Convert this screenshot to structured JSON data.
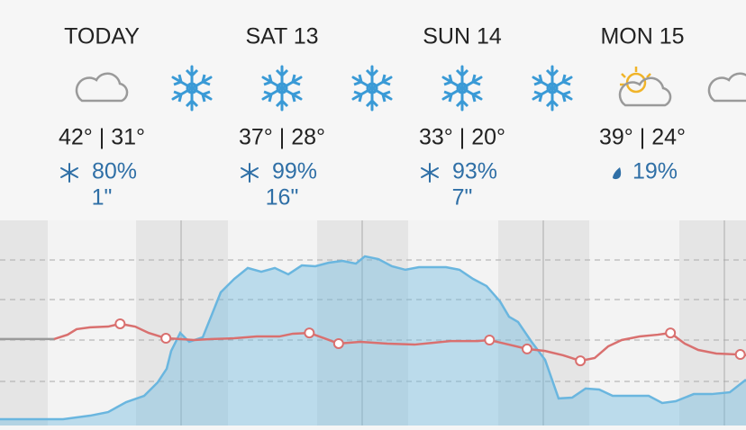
{
  "days": [
    {
      "label": "TODAY",
      "temps": "42° | 31°",
      "precip": "80%",
      "accum": "1\""
    },
    {
      "label": "SAT 13",
      "temps": "37° | 28°",
      "precip": "99%",
      "accum": "16\""
    },
    {
      "label": "SUN 14",
      "temps": "33° | 20°",
      "precip": "93%",
      "accum": "7\""
    },
    {
      "label": "MON 15",
      "temps": "39° | 24°",
      "precip": "19%"
    }
  ],
  "graph": {
    "xlim": [
      0,
      99.36
    ],
    "ylim": [
      0,
      100
    ],
    "precip": {
      "color": "#6ab6df",
      "x": [
        0,
        8.4,
        12,
        14.4,
        16.8,
        19.2,
        21,
        22.2,
        22.8,
        24,
        25.2,
        27,
        28.2,
        29.4,
        31.2,
        33,
        34.8,
        36.6,
        38.4,
        40.2,
        42,
        43.8,
        45.6,
        47.4,
        48.6,
        50.4,
        52.2,
        54,
        55.8,
        57.6,
        59.4,
        61.2,
        63,
        64.8,
        66.6,
        67.8,
        69,
        70.8,
        72.6,
        74.4,
        76.2,
        78,
        79.8,
        81.6,
        84,
        86.4,
        88.2,
        90,
        92.4,
        94.8,
        97.2,
        99.36
      ],
      "values": [
        0,
        0,
        1.8,
        3.6,
        8.6,
        11.8,
        18.6,
        25.5,
        34.5,
        43.6,
        39.1,
        41.4,
        52.7,
        64.1,
        70.9,
        76.4,
        74.5,
        76.4,
        73.2,
        77.7,
        77.3,
        79.1,
        80,
        78.6,
        82.3,
        80.9,
        77.3,
        75.5,
        76.8,
        76.8,
        76.8,
        75.5,
        70.9,
        67.3,
        59.5,
        51.8,
        49.1,
        39.1,
        30,
        10.5,
        10.9,
        15.5,
        15,
        11.8,
        11.8,
        11.8,
        8.2,
        9.1,
        12.7,
        12.7,
        13.6,
        20
      ]
    },
    "past": {
      "color": "#9a9a9a",
      "x": [
        0,
        7.2
      ],
      "values": [
        40.5,
        40.5
      ]
    },
    "temp": {
      "color": "#d9706f",
      "x": [
        7.2,
        9,
        10.2,
        12,
        14.4,
        16,
        18,
        19.8,
        22.1,
        24,
        25.8,
        28.2,
        31.2,
        34.2,
        37.2,
        39,
        41.2,
        43.2,
        45.1,
        48,
        51.6,
        55.2,
        57.6,
        60,
        63.6,
        65.2,
        67.2,
        70.2,
        72.6,
        75,
        77.3,
        79.2,
        81,
        82.8,
        85.2,
        87.6,
        89.3,
        91.2,
        93,
        95.4,
        98.4,
        99.36
      ],
      "values": [
        40.5,
        42.7,
        45.5,
        46.4,
        46.8,
        48.2,
        46.8,
        43.6,
        40.9,
        40.5,
        40,
        40.5,
        40.9,
        41.8,
        41.8,
        43.2,
        43.6,
        40.9,
        38.2,
        39.1,
        38.2,
        37.7,
        38.6,
        39.5,
        39.5,
        40,
        38.2,
        35.5,
        34.5,
        32.3,
        29.5,
        30.9,
        36.8,
        40,
        41.8,
        42.7,
        43.6,
        38.2,
        35,
        33.2,
        32.7,
        32.3
      ]
    },
    "points": {
      "x": [
        16,
        22.1,
        41.2,
        45.1,
        65.2,
        70.2,
        77.3,
        89.3,
        98.6
      ],
      "values": [
        48.2,
        40.9,
        43.6,
        38.2,
        40,
        35.5,
        29.5,
        43.6,
        32.7
      ]
    }
  }
}
